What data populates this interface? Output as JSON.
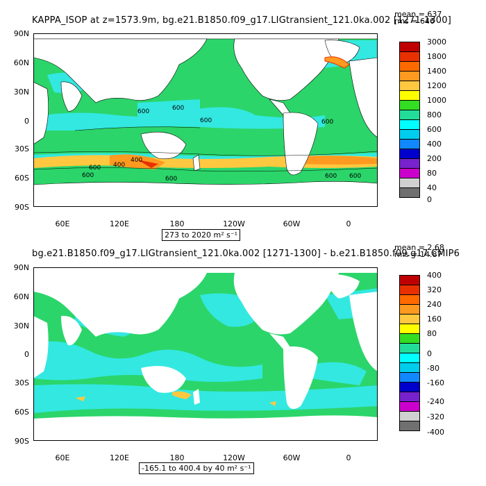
{
  "panel1": {
    "title": "KAPPA_ISOP at z=1573.9m, bg.e21.B1850.f09_g17.LIGtransient_121.0ka.002 [1271-1300]",
    "mean_label": "mean = 637",
    "rms_label": "rms = 646",
    "range_text": "273 to 2020 m² s⁻¹",
    "lat_labels": [
      "90N",
      "60N",
      "30N",
      "0",
      "30S",
      "60S",
      "90S"
    ],
    "lon_labels": [
      "60E",
      "120E",
      "180",
      "120W",
      "60W",
      "0"
    ],
    "colorbar_labels": [
      "3000",
      "1800",
      "1400",
      "1200",
      "1000",
      "800",
      "600",
      "400",
      "200",
      "80",
      "40",
      "0"
    ],
    "colorbar_colors": [
      "#c00000",
      "#e83000",
      "#ff6a00",
      "#ff9a20",
      "#ffc840",
      "#ffff00",
      "#33dd22",
      "#22dd99",
      "#00ffff",
      "#00ccee",
      "#1188ff",
      "#0000cc",
      "#7722cc",
      "#cc00cc",
      "#d0d0d0",
      "#707070"
    ],
    "contour_labels": [
      "600",
      "600",
      "600",
      "600",
      "400",
      "600",
      "600",
      "600",
      "600",
      "600",
      "400"
    ]
  },
  "panel2": {
    "title": "bg.e21.B1850.f09_g17.LIGtransient_121.0ka.002 [1271-1300] - b.e21.B1850.f09.g17.CMIP6",
    "mean_label": "mean = 2.68",
    "rms_label": "rms = 14.87",
    "range_text": "-165.1 to 400.4 by 40 m² s⁻¹",
    "lat_labels": [
      "90N",
      "60N",
      "30N",
      "0",
      "30S",
      "60S",
      "90S"
    ],
    "lon_labels": [
      "60E",
      "120E",
      "180",
      "120W",
      "60W",
      "0"
    ],
    "colorbar_labels": [
      "400",
      "320",
      "240",
      "160",
      "80",
      "0",
      "-80",
      "-160",
      "-240",
      "-320",
      "-400"
    ],
    "colorbar_colors": [
      "#c00000",
      "#e83000",
      "#ff6a00",
      "#ff9a20",
      "#ffc840",
      "#ffff00",
      "#33dd22",
      "#22dd99",
      "#00ffff",
      "#00ccee",
      "#1188ff",
      "#0000cc",
      "#7722cc",
      "#cc00cc",
      "#d0d0d0",
      "#707070"
    ]
  }
}
